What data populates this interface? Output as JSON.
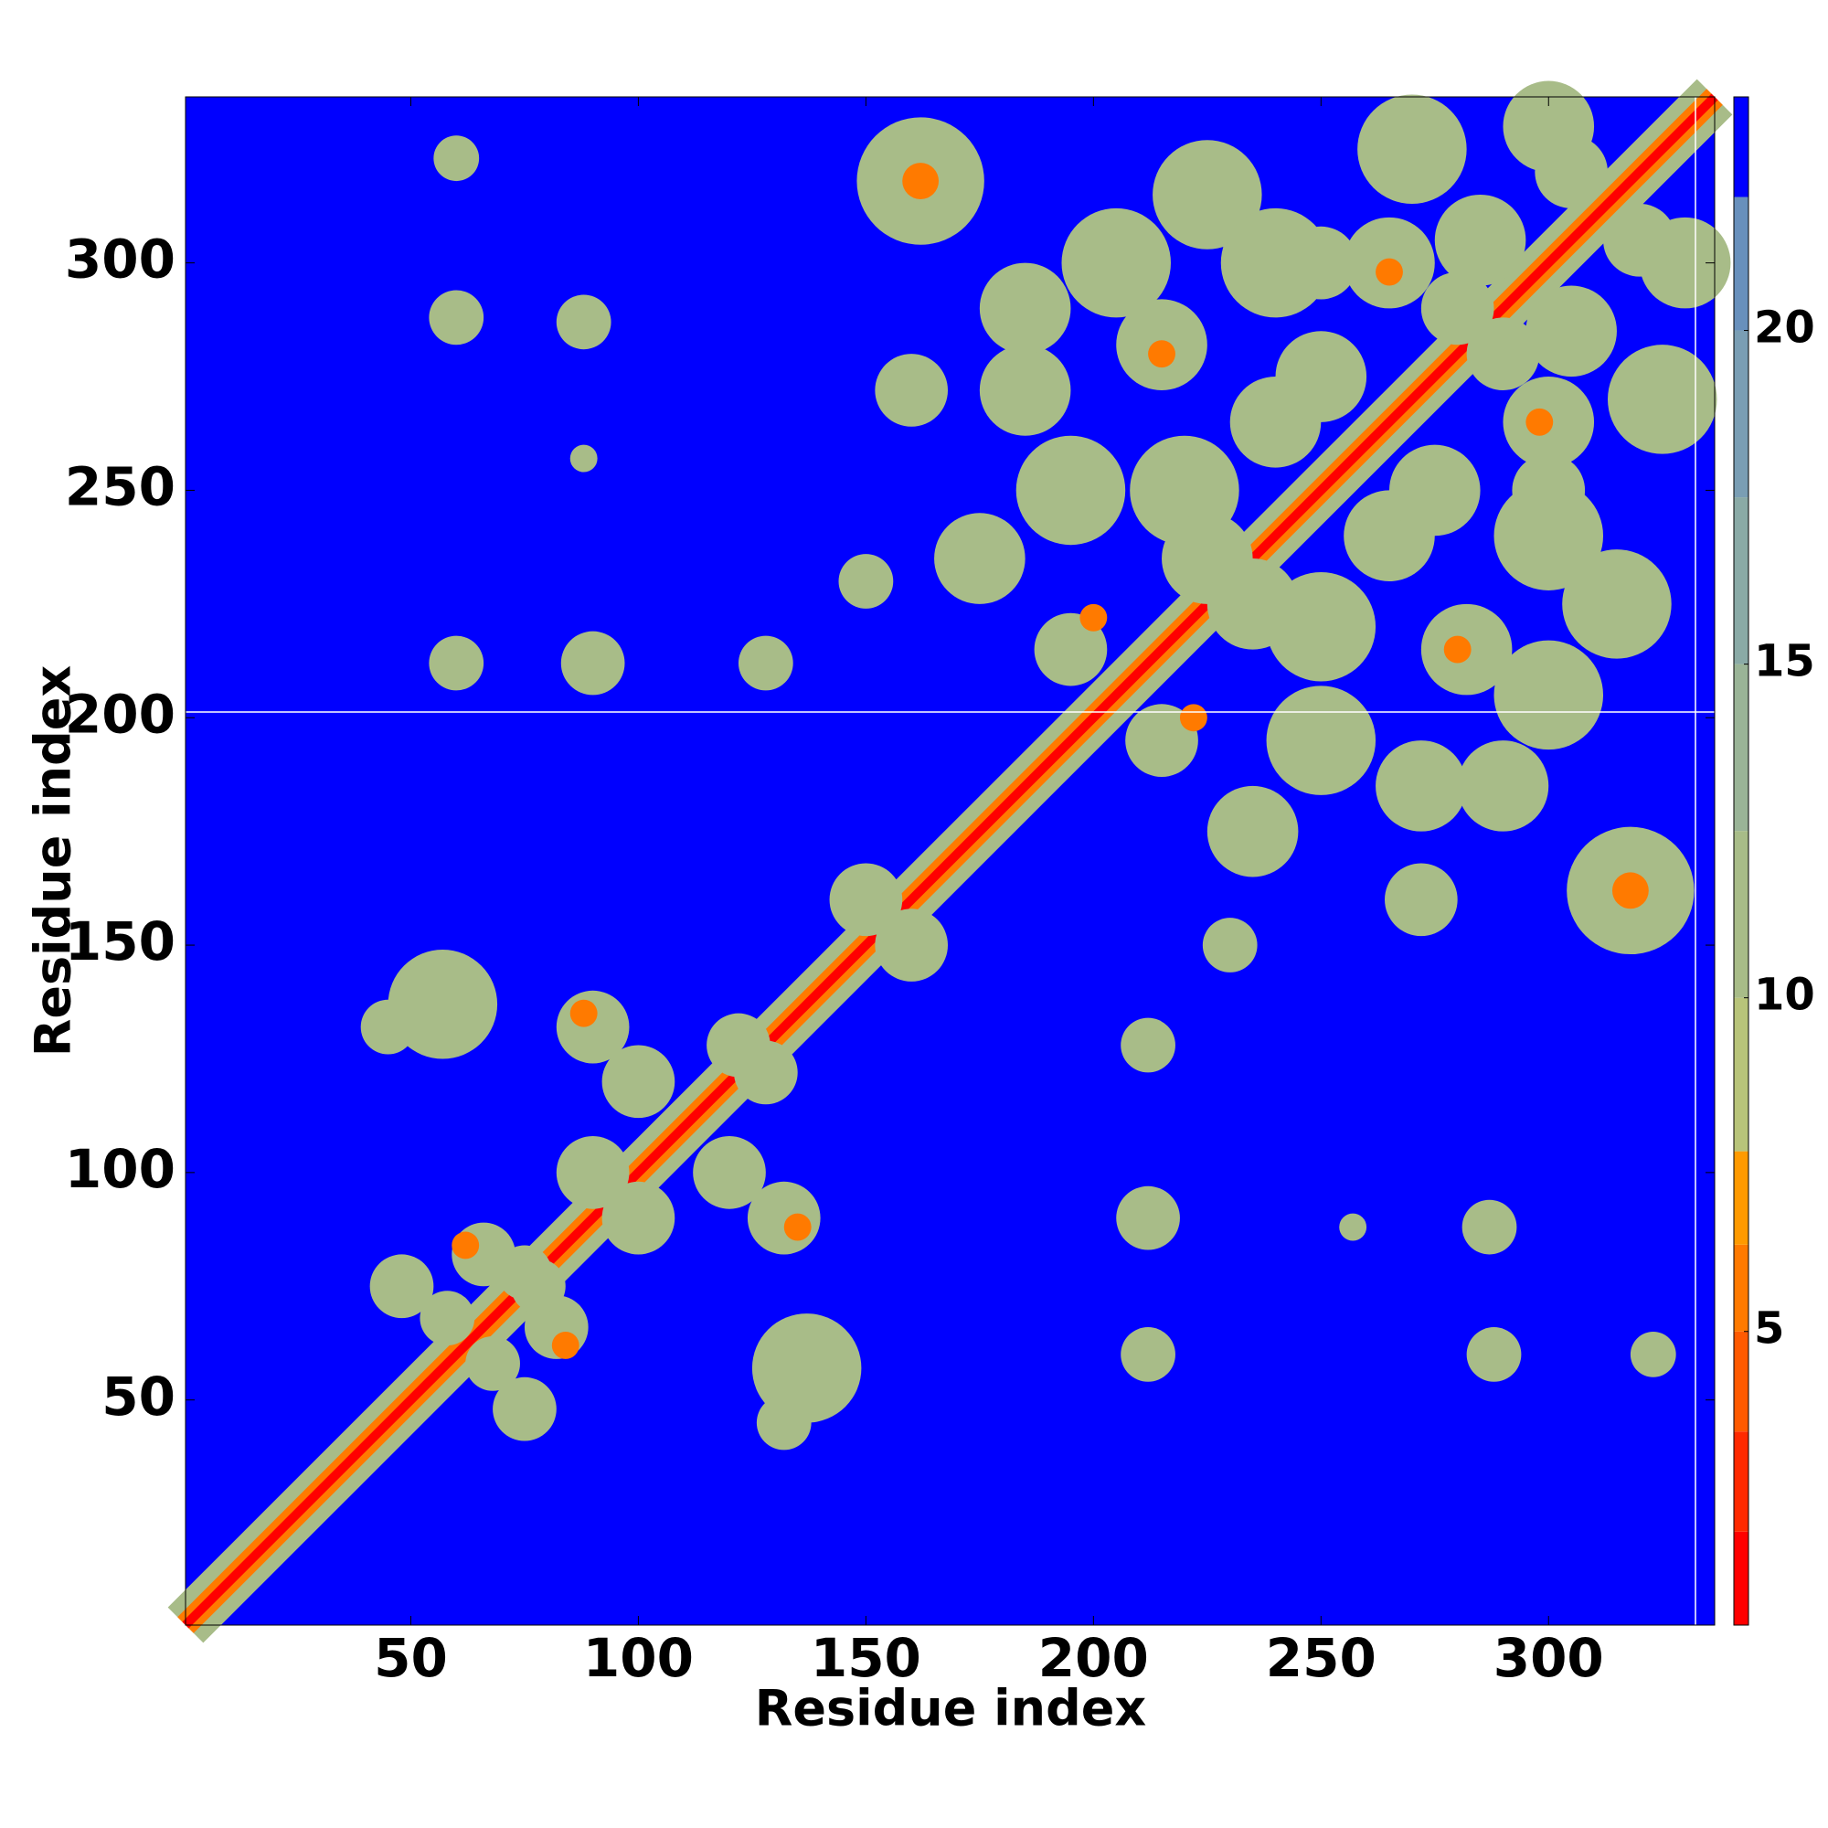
{
  "chart_data": {
    "type": "heatmap",
    "xlabel": "Residue index",
    "ylabel": "Residue index",
    "xlim": [
      0.5,
      336.5
    ],
    "ylim": [
      0.5,
      336.5
    ],
    "xticks": [
      50,
      100,
      150,
      200,
      250,
      300
    ],
    "yticks": [
      50,
      100,
      150,
      200,
      250,
      300
    ],
    "symmetric": true,
    "colorbar": {
      "levels": [
        0.6,
        2,
        3.5,
        5,
        6.3,
        7.7,
        10,
        12.5,
        15,
        17.5,
        20,
        22,
        23.5
      ],
      "colors": [
        "#ff0000",
        "#ff2a00",
        "#ff5a00",
        "#ff7a00",
        "#ff9a00",
        "#b8c47a",
        "#a8bc88",
        "#9ab497",
        "#8aaaa6",
        "#7a9eb4",
        "#6890bc",
        "#0000ff"
      ],
      "ticks": [
        5,
        10,
        15,
        20
      ]
    },
    "diagonal": {
      "values": [
        11,
        5,
        1
      ],
      "widths": [
        11,
        5,
        2
      ]
    },
    "contacts": {
      "x": [
        60,
        60,
        88,
        88,
        60,
        90,
        128,
        162,
        162,
        57,
        45,
        90,
        100,
        88,
        48,
        58,
        66,
        78,
        62,
        90,
        122,
        150,
        160,
        185,
        150,
        175,
        185,
        205,
        225,
        270,
        300,
        195,
        215,
        215,
        240,
        265,
        265,
        285,
        195,
        200,
        220,
        240,
        280,
        225,
        250,
        305,
        250
      ],
      "y": [
        323,
        288,
        287,
        257,
        212,
        212,
        212,
        318,
        318,
        137,
        132,
        132,
        120,
        135,
        75,
        68,
        82,
        75,
        84,
        100,
        128,
        160,
        272,
        272,
        230,
        235,
        290,
        300,
        315,
        325,
        330,
        250,
        282,
        280,
        300,
        300,
        298,
        305,
        215,
        222,
        250,
        265,
        290,
        235,
        275,
        320,
        300
      ],
      "sizes": [
        5,
        6,
        6,
        3,
        6,
        7,
        6,
        14,
        4,
        12,
        6,
        8,
        8,
        3,
        7,
        6,
        7,
        6,
        3,
        8,
        7,
        8,
        8,
        10,
        6,
        10,
        10,
        12,
        12,
        12,
        10,
        12,
        10,
        3,
        12,
        10,
        3,
        10,
        8,
        3,
        12,
        10,
        8,
        10,
        10,
        8,
        8
      ],
      "values": [
        11,
        11,
        11,
        12,
        11,
        11,
        11,
        11,
        6,
        11,
        11,
        11,
        11,
        6,
        11,
        11,
        11,
        11,
        6,
        11,
        11,
        11,
        11,
        11,
        11,
        11,
        11,
        11,
        11,
        11,
        11,
        11,
        11,
        6,
        11,
        11,
        6,
        11,
        11,
        6,
        11,
        11,
        11,
        11,
        11,
        11,
        11
      ]
    }
  }
}
